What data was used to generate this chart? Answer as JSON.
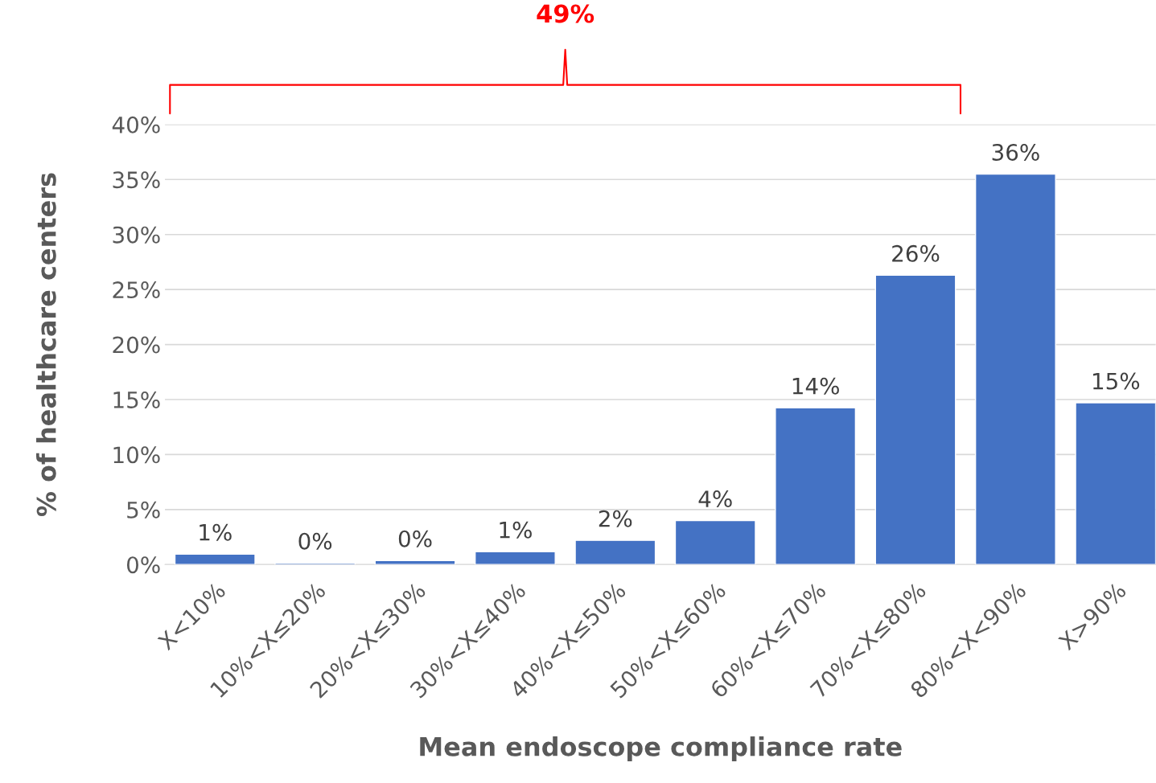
{
  "chart_data": {
    "type": "bar",
    "xlabel": "Mean endoscope compliance rate",
    "ylabel": "% of healthcare centers",
    "categories": [
      "X<10%",
      "10%<X≤20%",
      "20%<X≤30%",
      "30%<X≤40%",
      "40%<X≤50%",
      "50%<X≤60%",
      "60%<X≤70%",
      "70%<X≤80%",
      "80%<X<90%",
      "X>90%"
    ],
    "values": [
      0.95,
      0.15,
      0.37,
      1.17,
      2.2,
      4.0,
      14.25,
      26.3,
      35.5,
      14.7
    ],
    "value_labels": [
      "1%",
      "0%",
      "0%",
      "1%",
      "2%",
      "4%",
      "14%",
      "26%",
      "36%",
      "15%"
    ],
    "color": "#4472c4",
    "ylim": [
      0,
      40
    ],
    "yticks": [
      {
        "value": 0,
        "label": "0%"
      },
      {
        "value": 5,
        "label": "5%"
      },
      {
        "value": 10,
        "label": "10%"
      },
      {
        "value": 15,
        "label": "15%"
      },
      {
        "value": 20,
        "label": "20%"
      },
      {
        "value": 25,
        "label": "25%"
      },
      {
        "value": 30,
        "label": "30%"
      },
      {
        "value": 35,
        "label": "35%"
      },
      {
        "value": 40,
        "label": "40%"
      }
    ],
    "grid": "y",
    "annotations": [
      "49%"
    ]
  }
}
